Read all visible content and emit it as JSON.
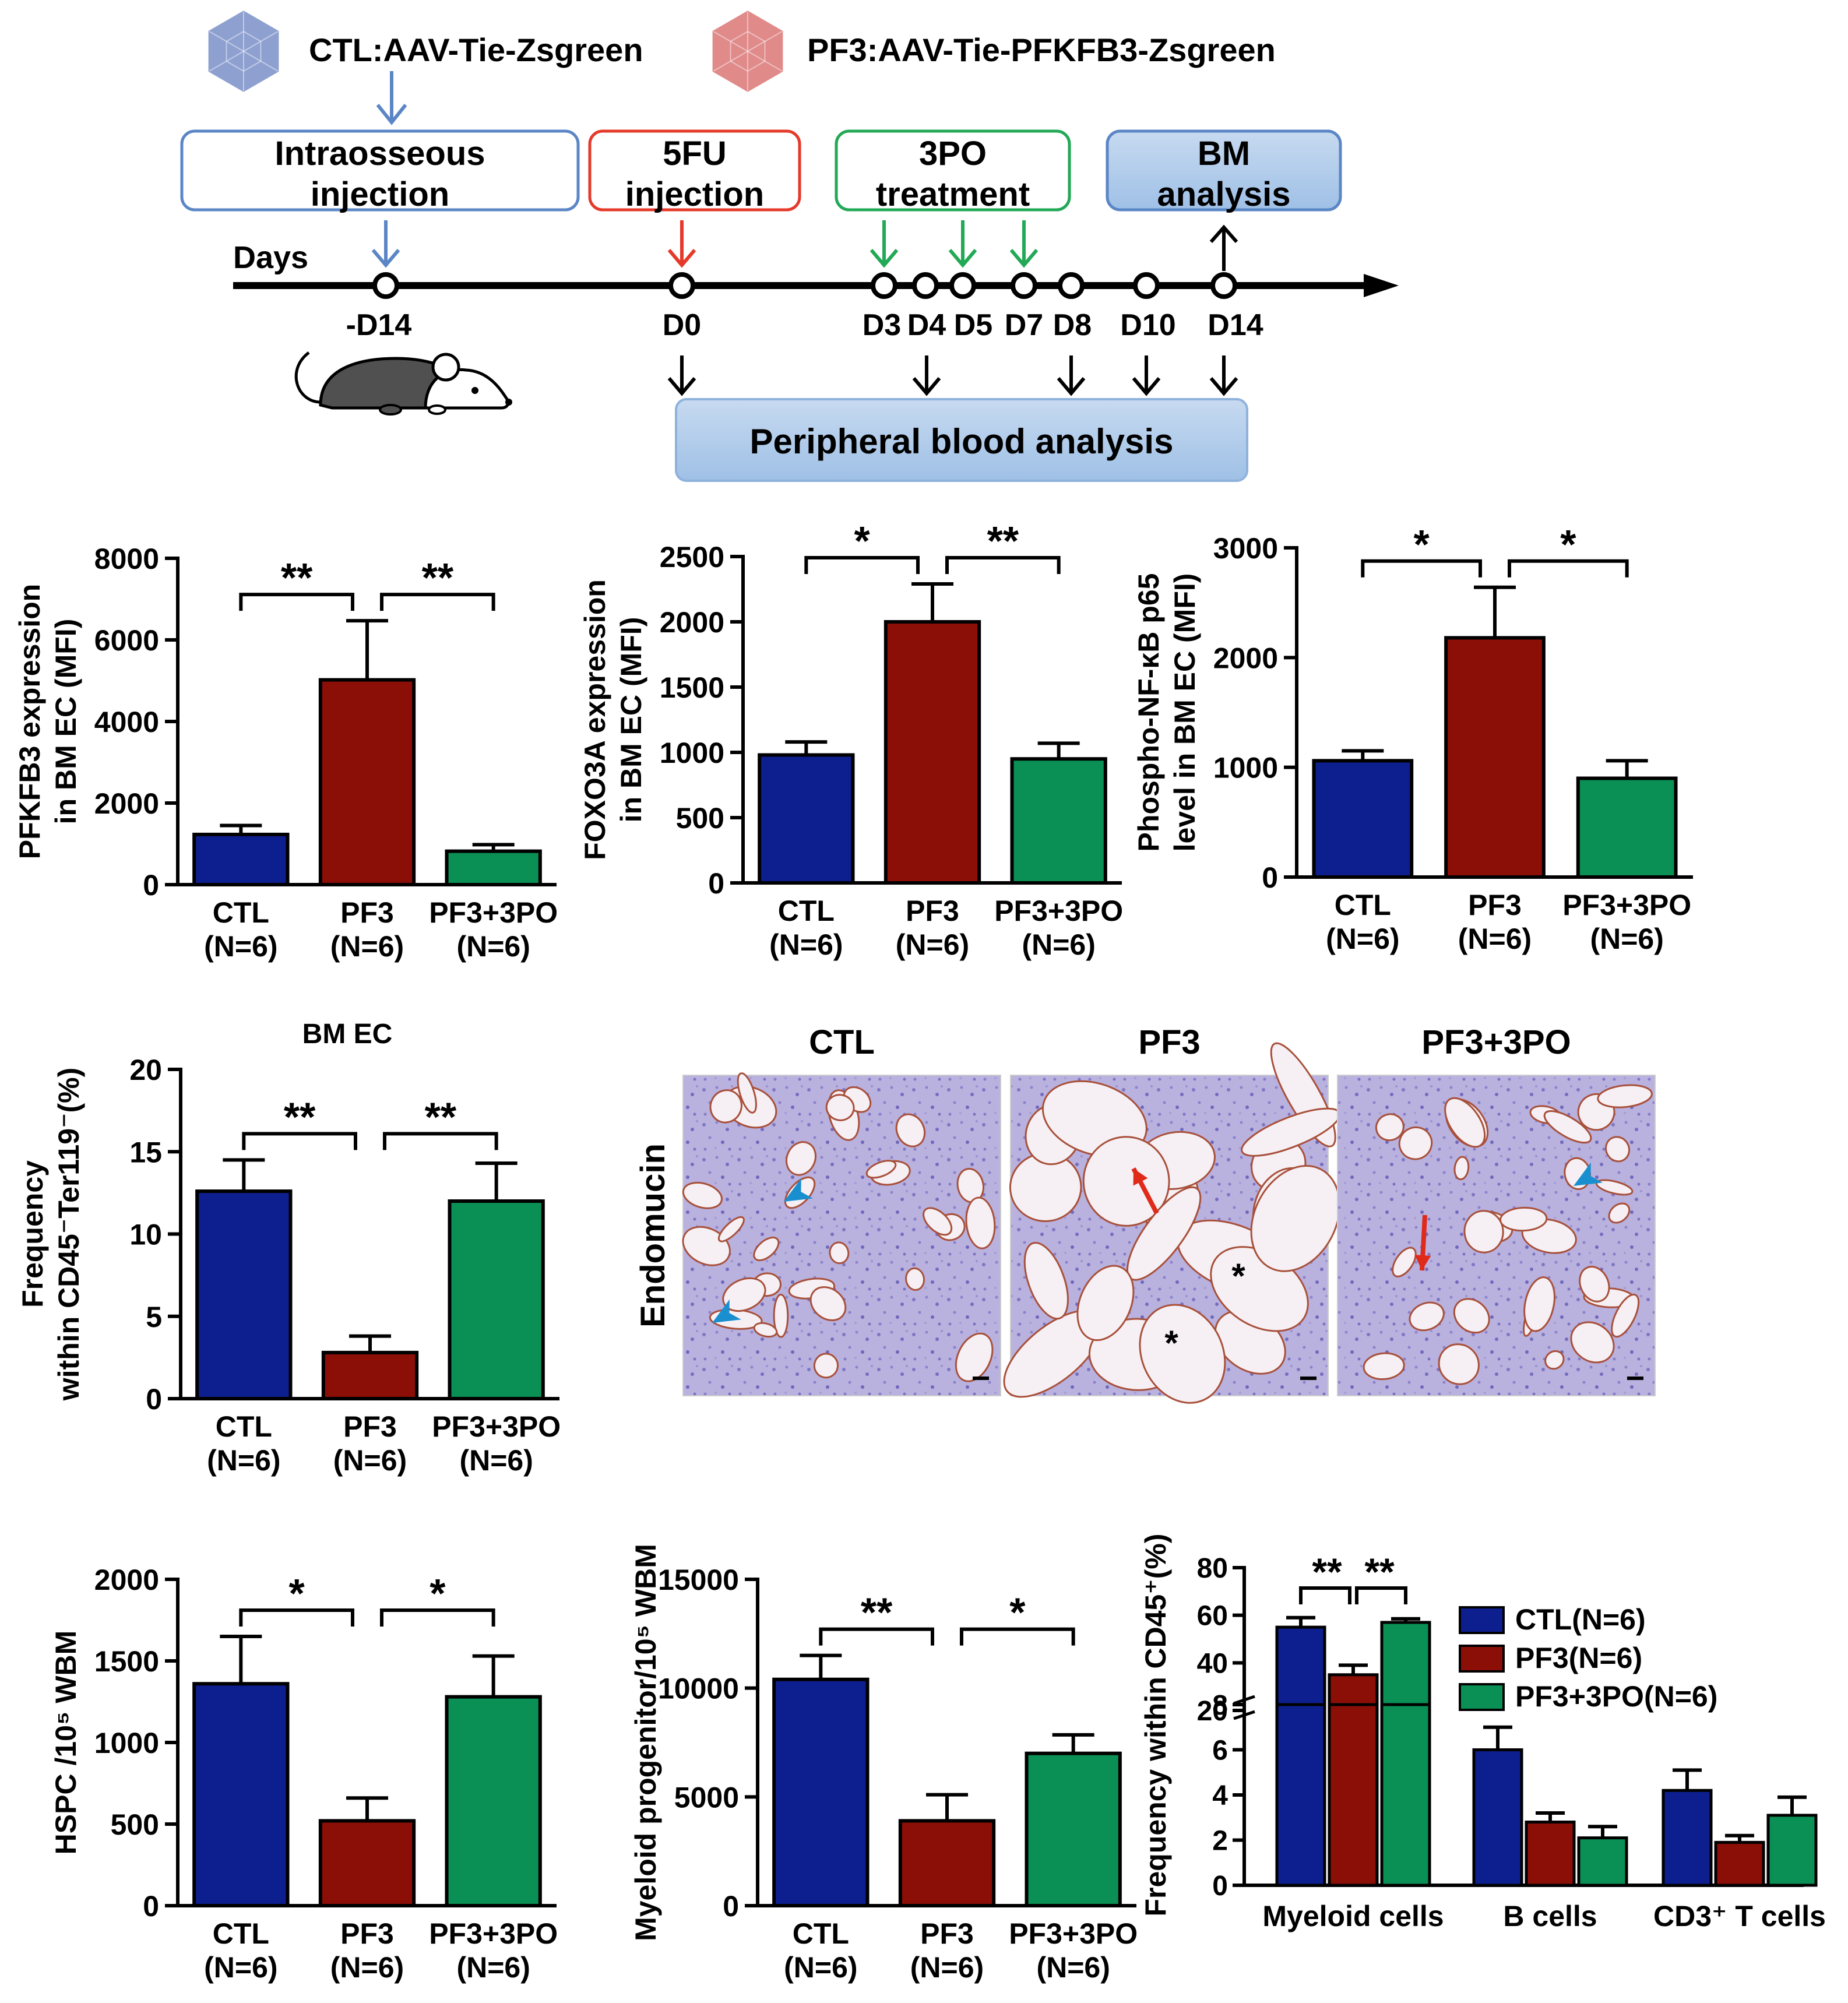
{
  "schematic": {
    "ctl_virus_label": "CTL:AAV-Tie-Zsgreen",
    "pf3_virus_label": "PF3:AAV-Tie-PFKFB3-Zsgreen",
    "colors": {
      "ctl_text": "#1a1aa8",
      "pf3_text": "#b21010",
      "ctl_virus": "#8ea0d0",
      "pf3_virus": "#e08a8a"
    },
    "boxes": [
      {
        "label": "Intraosseous injection",
        "lines": [
          "Intraosseous",
          "injection"
        ],
        "border": "#5b86c6",
        "fill": "#ffffff"
      },
      {
        "label": "5FU injection",
        "lines": [
          "5FU",
          "injection"
        ],
        "border": "#e5392a",
        "fill": "#ffffff"
      },
      {
        "label": "3PO treatment",
        "lines": [
          "3PO",
          "treatment"
        ],
        "border": "#22a955",
        "fill": "#ffffff"
      },
      {
        "label": "BM analysis",
        "lines": [
          "BM",
          "analysis"
        ],
        "border": "#5b86c6",
        "fill": "#a9c7e8"
      }
    ],
    "days_label": "Days",
    "timepoints": [
      "-D14",
      "D0",
      "D3",
      "D4",
      "D5",
      "D7",
      "D8",
      "D10",
      "D14"
    ],
    "blood_box_label": "Peripheral blood analysis",
    "icons": [
      "virus-icon",
      "mouse-icon"
    ]
  },
  "charts": {
    "pfkfb3": {
      "chart_data": {
        "type": "bar",
        "ylabel_lines": [
          "PFKFB3 expression",
          "in BM EC  (MFI)"
        ],
        "categories": [
          [
            "CTL",
            "(N=6)"
          ],
          [
            "PF3",
            "(N=6)"
          ],
          [
            "PF3+3PO",
            "(N=6)"
          ]
        ],
        "values": [
          1230,
          5020,
          820
        ],
        "errors": [
          220,
          1450,
          160
        ],
        "ylim": [
          0,
          8000
        ],
        "yticks": [
          "0",
          "2000",
          "4000",
          "6000",
          "8000"
        ],
        "significance": [
          "**",
          "**"
        ],
        "colors": [
          "#0d1f8f",
          "#8c0f07",
          "#0a8f55"
        ]
      }
    },
    "foxo3a": {
      "chart_data": {
        "type": "bar",
        "ylabel_lines": [
          "FOXO3A expression",
          "in BM EC  (MFI)"
        ],
        "categories": [
          [
            "CTL",
            "(N=6)"
          ],
          [
            "PF3",
            "(N=6)"
          ],
          [
            "PF3+3PO",
            "(N=6)"
          ]
        ],
        "values": [
          980,
          2000,
          950
        ],
        "errors": [
          100,
          290,
          120
        ],
        "ylim": [
          0,
          2500
        ],
        "yticks": [
          "0",
          "500",
          "1000",
          "1500",
          "2000",
          "2500"
        ],
        "significance": [
          "*",
          "**"
        ],
        "colors": [
          "#0d1f8f",
          "#8c0f07",
          "#0a8f55"
        ]
      }
    },
    "nfkb": {
      "chart_data": {
        "type": "bar",
        "ylabel_lines": [
          "Phospho-NF-κB p65",
          "level in BM EC  (MFI)"
        ],
        "categories": [
          [
            "CTL",
            "(N=6)"
          ],
          [
            "PF3",
            "(N=6)"
          ],
          [
            "PF3+3PO",
            "(N=6)"
          ]
        ],
        "values": [
          1060,
          2180,
          900
        ],
        "errors": [
          90,
          460,
          160
        ],
        "ylim": [
          0,
          3000
        ],
        "yticks": [
          "0",
          "1000",
          "2000",
          "3000"
        ],
        "significance": [
          "*",
          "*"
        ],
        "colors": [
          "#0d1f8f",
          "#8c0f07",
          "#0a8f55"
        ]
      }
    },
    "bmec": {
      "chart_data": {
        "type": "bar",
        "title": "BM EC",
        "ylabel_lines": [
          "Frequency",
          "within CD45⁻Ter119⁻(%)"
        ],
        "categories": [
          [
            "CTL",
            "(N=6)"
          ],
          [
            "PF3",
            "(N=6)"
          ],
          [
            "PF3+3PO",
            "(N=6)"
          ]
        ],
        "values": [
          12.6,
          2.8,
          12.0
        ],
        "errors": [
          1.9,
          1.0,
          2.3
        ],
        "ylim": [
          0,
          20
        ],
        "yticks": [
          "0",
          "5",
          "10",
          "15",
          "20"
        ],
        "significance": [
          "**",
          "**"
        ],
        "colors": [
          "#0d1f8f",
          "#8c0f07",
          "#0a8f55"
        ]
      }
    },
    "hspc": {
      "chart_data": {
        "type": "bar",
        "ylabel_lines": [
          "HSPC  /10⁵ WBM"
        ],
        "categories": [
          [
            "CTL",
            "(N=6)"
          ],
          [
            "PF3",
            "(N=6)"
          ],
          [
            "PF3+3PO",
            "(N=6)"
          ]
        ],
        "values": [
          1360,
          520,
          1280
        ],
        "errors": [
          290,
          140,
          250
        ],
        "ylim": [
          0,
          2000
        ],
        "yticks": [
          "0",
          "500",
          "1000",
          "1500",
          "2000"
        ],
        "significance": [
          "*",
          "*"
        ],
        "colors": [
          "#0d1f8f",
          "#8c0f07",
          "#0a8f55"
        ]
      }
    },
    "myeloid_progenitor": {
      "chart_data": {
        "type": "bar",
        "ylabel_lines": [
          "Myeloid progenitor/10⁵ WBM"
        ],
        "categories": [
          [
            "CTL",
            "(N=6)"
          ],
          [
            "PF3",
            "(N=6)"
          ],
          [
            "PF3+3PO",
            "(N=6)"
          ]
        ],
        "values": [
          10400,
          3900,
          7000
        ],
        "errors": [
          1100,
          1200,
          850
        ],
        "ylim": [
          0,
          15000
        ],
        "yticks": [
          "0",
          "5000",
          "10000",
          "15000"
        ],
        "significance": [
          "**",
          "*"
        ],
        "colors": [
          "#0d1f8f",
          "#8c0f07",
          "#0a8f55"
        ]
      }
    },
    "cd45": {
      "chart_data": {
        "type": "bar",
        "ylabel": "Frequency within CD45⁺(%)",
        "categories": [
          "Myeloid cells",
          "B cells",
          "CD3⁺ T cells"
        ],
        "series": [
          {
            "name": "CTL(N=6)",
            "values": [
              55,
              6.0,
              4.2
            ],
            "errors": [
              4,
              1.0,
              0.9
            ],
            "color": "#0d1f8f"
          },
          {
            "name": "PF3(N=6)",
            "values": [
              35,
              2.8,
              1.9
            ],
            "errors": [
              4,
              0.4,
              0.3
            ],
            "color": "#8c0f07"
          },
          {
            "name": "PF3+3PO(N=6)",
            "values": [
              57,
              2.1,
              3.1
            ],
            "errors": [
              1.5,
              0.5,
              0.8
            ],
            "color": "#0a8f55"
          }
        ],
        "ylim_lower": [
          0,
          8
        ],
        "ylim_upper": [
          20,
          80
        ],
        "yticks_lower": [
          "0",
          "2",
          "4",
          "6",
          "8"
        ],
        "yticks_upper": [
          "20",
          "40",
          "60",
          "80"
        ],
        "significance": [
          "**",
          "**"
        ],
        "legend_position": "right"
      }
    }
  },
  "histology": {
    "panel_titles": [
      "CTL",
      "PF3",
      "PF3+3PO"
    ],
    "row_label": "Endomucin",
    "asterisk_mark": "*",
    "marker_colors": {
      "arrowhead": "#1a8fd0",
      "arrow": "#e02a1a"
    }
  }
}
